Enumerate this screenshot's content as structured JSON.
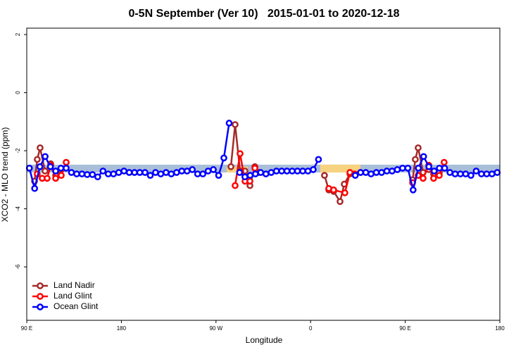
{
  "chart_data": {
    "type": "line",
    "title": "0-5N September (Ver 10)   2015-01-01 to 2020-12-18",
    "x_label": "Longitude",
    "y_label": "XCO2 - MLO trend (ppm)",
    "xlim": [
      90,
      540
    ],
    "ylim": [
      -7.84,
      2.22
    ],
    "xticks": [
      {
        "value": 90,
        "label": "90 E"
      },
      180,
      {
        "value": 270,
        "label": "90 W"
      },
      {
        "value": 360,
        "label": "0"
      },
      {
        "value": 450,
        "label": "90 E"
      },
      {
        "value": 540,
        "label": "180"
      }
    ],
    "yticks": [
      2,
      0,
      -2,
      -4,
      -6
    ],
    "legend_position": "bottom-left",
    "bands": [
      {
        "x": [
          90,
          540
        ],
        "y": [
          -2.75,
          -2.48
        ],
        "color": "#a9bfd9"
      },
      {
        "x": [
          280.2,
          300.3
        ],
        "y": [
          -2.75,
          -2.55
        ],
        "color": "#f7d27f"
      },
      {
        "x": [
          369.2,
          407.4
        ],
        "y": [
          -2.75,
          -2.48
        ],
        "color": "#f7d27f"
      }
    ],
    "series": [
      {
        "name": "Land Nadir",
        "color": "#a52a2a",
        "x": [
          97.4,
          100,
          102.7,
          107.4,
          112.8,
          117.5,
          122.8,
          null,
          284.2,
          288.2,
          292.9,
          297.6,
          302.3,
          307,
          311,
          null,
          373.2,
          377.3,
          381.9,
          388,
          392,
          397.4,
          null,
          457,
          459.6,
          462.3,
          467,
          472.4,
          477,
          482.4,
          487
        ],
        "values": [
          -3.05,
          -2.3,
          -1.9,
          -2.7,
          -2.45,
          -2.85,
          -2.65,
          null,
          -2.55,
          -1.1,
          -2.7,
          -2.7,
          -3.2,
          -2.55,
          -2.75,
          null,
          -2.85,
          -3.35,
          -3.4,
          -3.75,
          -3.15,
          -2.8,
          null,
          -3.0,
          -2.3,
          -1.9,
          -2.75,
          -2.65,
          -2.8,
          -2.75,
          -2.6
        ]
      },
      {
        "name": "Land Glint",
        "color": "#ff0000",
        "x": [
          100,
          104.7,
          109.4,
          112.8,
          117.5,
          122.8,
          127.5,
          null,
          288.2,
          292.9,
          297.6,
          302.3,
          307,
          null,
          377.3,
          381.9,
          392.6,
          397.4,
          402,
          407.4,
          null,
          457,
          462.3,
          467,
          472.4,
          477,
          482.4,
          487
        ],
        "values": [
          -2.8,
          -2.95,
          -2.95,
          -2.5,
          -2.95,
          -2.85,
          -2.4,
          null,
          -3.2,
          -2.1,
          -3.05,
          -3.05,
          -2.6,
          null,
          -3.3,
          -3.35,
          -3.45,
          -2.75,
          -2.8,
          -2.75,
          null,
          -3.1,
          -2.85,
          -2.95,
          -2.5,
          -2.95,
          -2.85,
          -2.4
        ]
      },
      {
        "name": "Ocean Glint",
        "color": "#0000ff",
        "x": [
          92.5,
          97.5,
          102.5,
          107.5,
          112.5,
          117.5,
          122.5,
          127.5,
          132.5,
          137.5,
          142.5,
          147.5,
          152.5,
          157.5,
          162.5,
          167.5,
          172.5,
          177.5,
          182.5,
          187.5,
          192.5,
          197.5,
          202.5,
          207.5,
          212.5,
          217.5,
          222.5,
          227.5,
          232.5,
          237.5,
          242.5,
          247.5,
          252.5,
          257.5,
          262.5,
          267.5,
          272.5,
          277.5,
          282.5,
          287.5,
          292.5,
          297.5,
          302.5,
          307.5,
          312.5,
          317.5,
          322.5,
          327.5,
          332.5,
          337.5,
          342.5,
          347.5,
          352.5,
          357.5,
          362.5,
          367.5,
          372.5,
          377.5,
          382.5,
          387.5,
          392.5,
          397.5,
          402.5,
          407.5,
          412.5,
          417.5,
          422.5,
          427.5,
          432.5,
          437.5,
          442.5,
          447.5,
          452.5,
          457.5,
          462.5,
          467.5,
          472.5,
          477.5,
          482.5,
          487.5,
          492.5,
          497.5,
          502.5,
          507.5,
          512.5,
          517.5,
          522.5,
          527.5,
          532.5,
          537.5
        ],
        "values": [
          -2.6,
          -3.3,
          -2.55,
          -2.2,
          -2.55,
          -2.7,
          -2.6,
          -2.6,
          -2.75,
          -2.8,
          -2.8,
          -2.82,
          -2.82,
          -2.9,
          -2.7,
          -2.8,
          -2.8,
          -2.75,
          -2.7,
          -2.75,
          -2.75,
          -2.75,
          -2.75,
          -2.85,
          -2.75,
          -2.8,
          -2.75,
          -2.8,
          -2.75,
          -2.7,
          -2.7,
          -2.65,
          -2.8,
          -2.8,
          -2.7,
          -2.65,
          -2.85,
          -2.25,
          -1.05,
          null,
          -2.75,
          -2.9,
          -2.85,
          -2.8,
          -2.75,
          -2.8,
          -2.75,
          -2.7,
          -2.7,
          -2.7,
          -2.7,
          -2.7,
          -2.7,
          -2.7,
          -2.65,
          -2.3,
          null,
          null,
          null,
          null,
          null,
          null,
          -2.85,
          -2.75,
          -2.75,
          -2.8,
          -2.75,
          -2.75,
          -2.7,
          -2.7,
          -2.65,
          -2.6,
          -2.6,
          -3.35,
          -2.6,
          -2.2,
          -2.55,
          -2.7,
          -2.6,
          -2.6,
          -2.75,
          -2.8,
          -2.8,
          -2.8,
          -2.85,
          -2.7,
          -2.8,
          -2.8,
          -2.8,
          -2.75
        ]
      }
    ]
  }
}
